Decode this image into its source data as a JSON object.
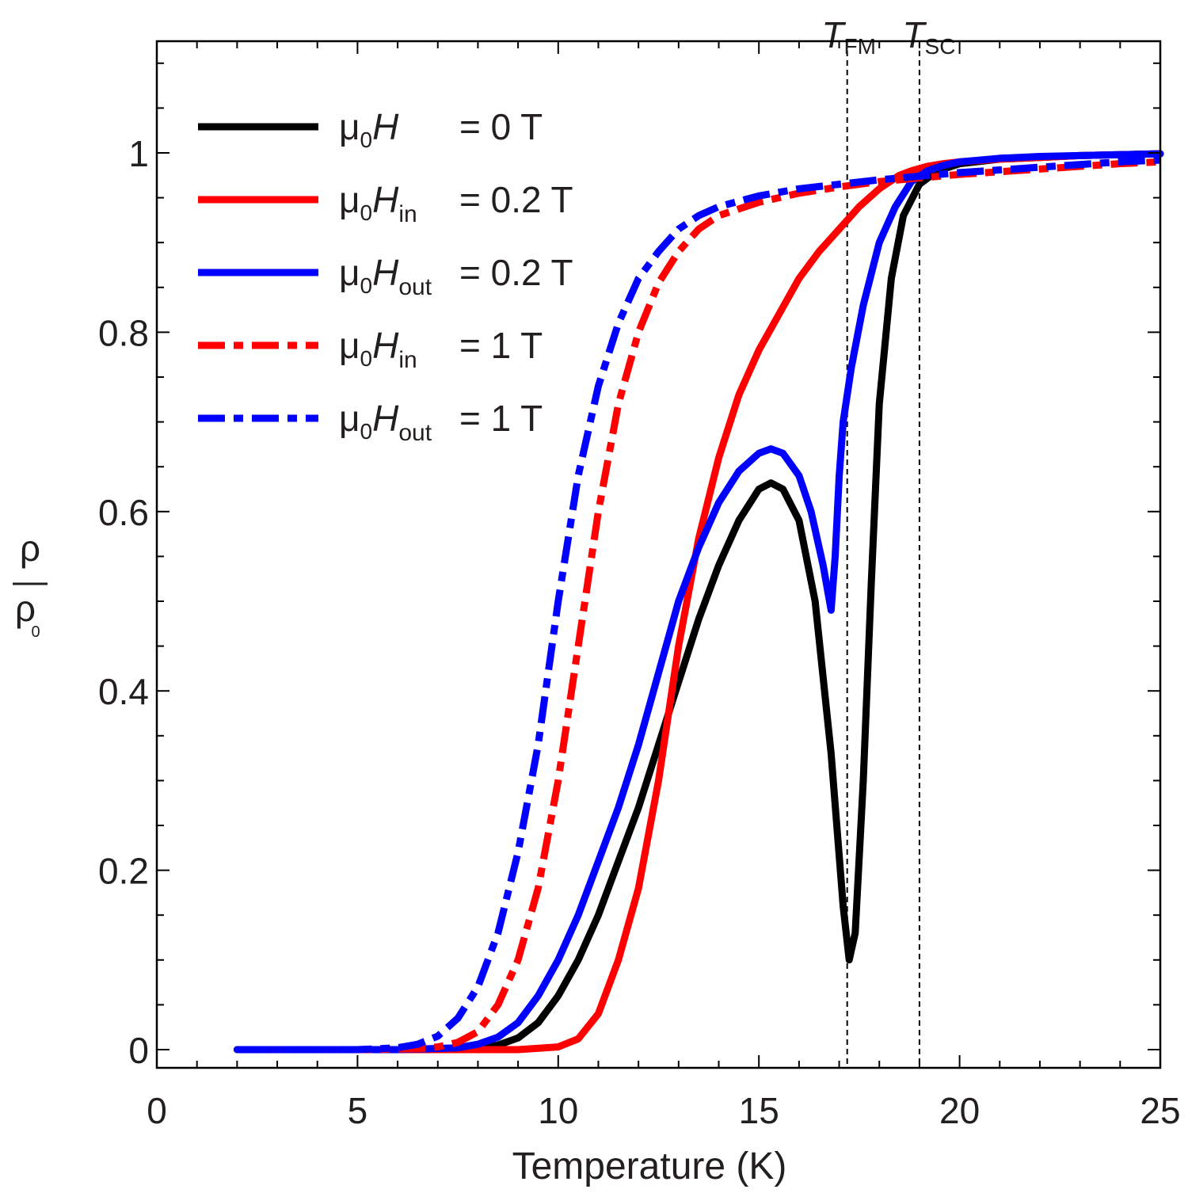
{
  "chart_data": {
    "type": "line",
    "xlabel": "Temperature (K)",
    "ylabel": {
      "num": "ρ",
      "den": "ρ",
      "den_sub": "0"
    },
    "xlim": [
      0,
      25
    ],
    "ylim": [
      -0.02,
      1.1
    ],
    "xticks": [
      0,
      5,
      10,
      15,
      20,
      25
    ],
    "xtick_labels": [
      "0",
      "5",
      "10",
      "15",
      "20",
      "25"
    ],
    "yticks": [
      0,
      0.2,
      0.4,
      0.6,
      0.8,
      1
    ],
    "ytick_labels": [
      "0",
      "0.2",
      "0.4",
      "0.6",
      "0.8",
      "1"
    ],
    "grid": false,
    "legend_position": "top-left",
    "markers": [
      {
        "x": 17.2,
        "label": "T",
        "sub": "FM"
      },
      {
        "x": 19.0,
        "label": "T",
        "sub": "SC"
      }
    ],
    "series": [
      {
        "color": "#000000",
        "dash": "solid",
        "legend": {
          "prefix": "μ",
          "prefix_sub": "0",
          "symbol": "H",
          "symbol_sub": "",
          "value": "= 0 T"
        },
        "x": [
          2,
          4,
          6,
          8,
          8.5,
          9,
          9.5,
          10,
          10.5,
          11,
          11.5,
          12,
          12.5,
          13,
          13.5,
          14,
          14.5,
          15,
          15.3,
          15.6,
          16,
          16.4,
          16.8,
          17.1,
          17.25,
          17.4,
          17.6,
          17.8,
          18,
          18.3,
          18.6,
          19,
          19.3,
          19.6,
          20,
          21,
          22,
          23,
          24,
          25
        ],
        "y": [
          0,
          0,
          0,
          0.002,
          0.005,
          0.013,
          0.03,
          0.06,
          0.1,
          0.15,
          0.21,
          0.27,
          0.34,
          0.41,
          0.48,
          0.54,
          0.59,
          0.625,
          0.632,
          0.625,
          0.59,
          0.5,
          0.33,
          0.16,
          0.1,
          0.13,
          0.3,
          0.52,
          0.72,
          0.86,
          0.93,
          0.965,
          0.975,
          0.982,
          0.988,
          0.993,
          0.995,
          0.997,
          0.998,
          0.999
        ]
      },
      {
        "color": "#ff0000",
        "dash": "solid",
        "legend": {
          "prefix": "μ",
          "prefix_sub": "0",
          "symbol": "H",
          "symbol_sub": "in",
          "value": "= 0.2 T"
        },
        "x": [
          2,
          6,
          9,
          10,
          10.5,
          11,
          11.5,
          12,
          12.5,
          13,
          13.5,
          14,
          14.5,
          15,
          15.5,
          16,
          16.5,
          17,
          17.5,
          18,
          18.5,
          18.8,
          19.2,
          19.6,
          20,
          21,
          22,
          23,
          24,
          25
        ],
        "y": [
          0,
          0,
          0,
          0.003,
          0.012,
          0.04,
          0.1,
          0.18,
          0.3,
          0.45,
          0.57,
          0.66,
          0.73,
          0.78,
          0.82,
          0.86,
          0.89,
          0.915,
          0.94,
          0.96,
          0.975,
          0.98,
          0.985,
          0.988,
          0.99,
          0.993,
          0.995,
          0.997,
          0.998,
          0.999
        ]
      },
      {
        "color": "#0000ff",
        "dash": "solid",
        "legend": {
          "prefix": "μ",
          "prefix_sub": "0",
          "symbol": "H",
          "symbol_sub": "out",
          "value": "= 0.2 T"
        },
        "x": [
          2,
          4,
          6,
          7.5,
          8,
          8.5,
          9,
          9.5,
          10,
          10.5,
          11,
          11.5,
          12,
          12.5,
          13,
          13.5,
          14,
          14.5,
          15,
          15.3,
          15.6,
          16,
          16.3,
          16.6,
          16.8,
          16.9,
          17,
          17.1,
          17.3,
          17.6,
          18,
          18.4,
          18.8,
          19.2,
          19.6,
          20,
          21,
          22,
          23,
          24,
          25
        ],
        "y": [
          0,
          0,
          0,
          0.002,
          0.006,
          0.014,
          0.03,
          0.06,
          0.1,
          0.15,
          0.21,
          0.27,
          0.34,
          0.42,
          0.5,
          0.56,
          0.61,
          0.645,
          0.665,
          0.67,
          0.665,
          0.64,
          0.6,
          0.54,
          0.49,
          0.55,
          0.64,
          0.7,
          0.76,
          0.83,
          0.9,
          0.94,
          0.968,
          0.98,
          0.986,
          0.99,
          0.994,
          0.996,
          0.997,
          0.998,
          0.999
        ]
      },
      {
        "color": "#ff0000",
        "dash": "dashdot",
        "legend": {
          "prefix": "μ",
          "prefix_sub": "0",
          "symbol": "H",
          "symbol_sub": "in",
          "value": "= 1 T"
        },
        "x": [
          2,
          5,
          6.5,
          7,
          7.5,
          8,
          8.5,
          9,
          9.5,
          10,
          10.5,
          11,
          11.5,
          12,
          12.5,
          13,
          13.5,
          14,
          15,
          16,
          17,
          18,
          19,
          20,
          22,
          24,
          25
        ],
        "y": [
          0,
          0,
          0.001,
          0.003,
          0.008,
          0.02,
          0.05,
          0.1,
          0.18,
          0.3,
          0.45,
          0.6,
          0.72,
          0.8,
          0.855,
          0.89,
          0.915,
          0.93,
          0.945,
          0.955,
          0.962,
          0.968,
          0.972,
          0.976,
          0.982,
          0.988,
          0.99
        ]
      },
      {
        "color": "#0000ff",
        "dash": "dashdot",
        "legend": {
          "prefix": "μ",
          "prefix_sub": "0",
          "symbol": "H",
          "symbol_sub": "out",
          "value": "= 1 T"
        },
        "x": [
          2,
          5,
          6,
          6.5,
          7,
          7.5,
          8,
          8.5,
          9,
          9.5,
          10,
          10.5,
          11,
          11.5,
          12,
          12.5,
          13,
          13.5,
          14,
          15,
          16,
          17,
          18,
          19,
          20,
          22,
          24,
          25
        ],
        "y": [
          0,
          0,
          0.002,
          0.006,
          0.015,
          0.035,
          0.07,
          0.13,
          0.22,
          0.34,
          0.5,
          0.64,
          0.74,
          0.81,
          0.86,
          0.89,
          0.915,
          0.93,
          0.94,
          0.952,
          0.96,
          0.965,
          0.97,
          0.974,
          0.978,
          0.984,
          0.99,
          0.992
        ]
      }
    ]
  }
}
